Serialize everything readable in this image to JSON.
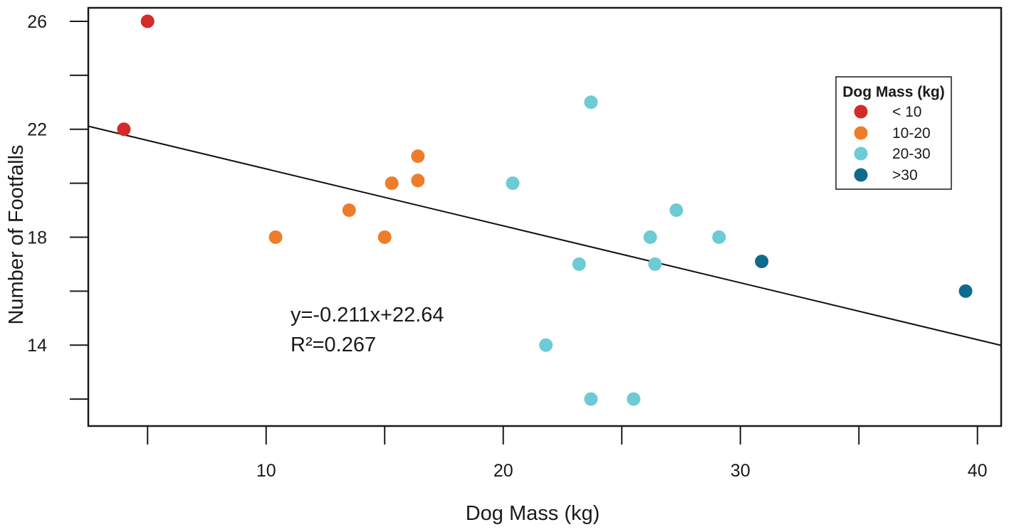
{
  "chart_data": {
    "type": "scatter",
    "title": "",
    "xlabel": "Dog Mass (kg)",
    "ylabel": "Number of Footfalls",
    "xlim": [
      2.5,
      41
    ],
    "ylim": [
      11,
      26.5
    ],
    "x_ticks": [
      5,
      10,
      15,
      20,
      25,
      30,
      35,
      40
    ],
    "x_tick_labels": [
      "10",
      "20",
      "30",
      "40"
    ],
    "x_tick_label_values": [
      10,
      20,
      30,
      40
    ],
    "y_ticks": [
      12,
      14,
      16,
      18,
      20,
      22,
      24,
      26
    ],
    "y_tick_labels": [
      "14",
      "18",
      "22",
      "26"
    ],
    "y_tick_label_values": [
      14,
      18,
      22,
      26
    ],
    "grid": false,
    "legend": {
      "title": "Dog Mass (kg)",
      "position": "top-right",
      "entries": [
        {
          "label": "< 10",
          "color": "#d52a2a"
        },
        {
          "label": "10-20",
          "color": "#ee7d2b"
        },
        {
          "label": "20-30",
          "color": "#6ccbd4"
        },
        {
          "label": ">30",
          "color": "#0f6b8c"
        }
      ]
    },
    "series": [
      {
        "name": "< 10",
        "color": "#d52a2a",
        "points": [
          [
            5.0,
            26
          ],
          [
            4.0,
            22
          ]
        ]
      },
      {
        "name": "10-20",
        "color": "#ee7d2b",
        "points": [
          [
            10.4,
            18
          ],
          [
            13.5,
            19
          ],
          [
            15.0,
            18
          ],
          [
            15.3,
            20
          ],
          [
            16.4,
            21
          ],
          [
            16.4,
            20.1
          ]
        ]
      },
      {
        "name": "20-30",
        "color": "#6ccbd4",
        "points": [
          [
            20.4,
            20
          ],
          [
            21.8,
            14
          ],
          [
            23.2,
            17
          ],
          [
            23.7,
            23
          ],
          [
            23.7,
            12
          ],
          [
            25.5,
            12
          ],
          [
            26.2,
            18
          ],
          [
            26.4,
            17
          ],
          [
            27.3,
            19
          ],
          [
            29.1,
            18
          ]
        ]
      },
      {
        "name": ">30",
        "color": "#0f6b8c",
        "points": [
          [
            30.9,
            17.1
          ],
          [
            39.5,
            16
          ]
        ]
      }
    ],
    "trendline": {
      "slope": -0.211,
      "intercept": 22.64,
      "x_range": [
        2.5,
        41
      ],
      "color": "#111111"
    },
    "annotations": [
      "y=-0.211x+22.64",
      "R²=0.267"
    ]
  }
}
